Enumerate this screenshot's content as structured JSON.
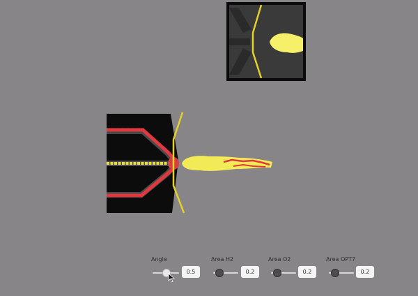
{
  "controls": [
    {
      "label": "Angle",
      "value": "0.5"
    },
    {
      "label": "Area H2",
      "value": "0.2"
    },
    {
      "label": "Area O2",
      "value": "0.2"
    },
    {
      "label": "Area OPT7",
      "value": "0.2"
    }
  ],
  "colors": {
    "background": "#878587",
    "nozzle": "#111111",
    "flame": "#f3ea57",
    "fuel_line": "#e0383f",
    "lip": "#e5cf2b"
  },
  "icons": [
    "cursor-pointer-icon"
  ]
}
